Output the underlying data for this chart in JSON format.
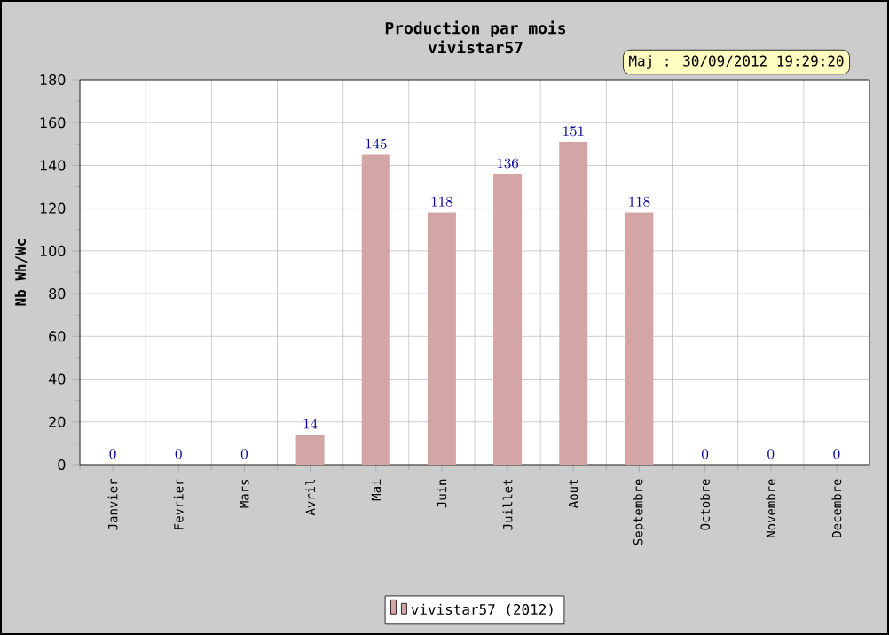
{
  "chart_data": {
    "type": "bar",
    "title": "Production par mois\nvivistar57",
    "ylabel": "Nb Wh/Wc",
    "annotations": [
      "Maj : 30/09/2012 19:29:20"
    ],
    "categories": [
      "Janvier",
      "Fevrier",
      "Mars",
      "Avril",
      "Mai",
      "Juin",
      "Juillet",
      "Aout",
      "Septembre",
      "Octobre",
      "Novembre",
      "Decembre"
    ],
    "series": [
      {
        "name": "vivistar57 (2012)",
        "color": "#d4a5a5",
        "values": [
          0,
          0,
          0,
          14,
          145,
          118,
          136,
          151,
          118,
          0,
          0,
          0
        ]
      }
    ],
    "ylim": [
      0,
      180
    ],
    "yticks": [
      0,
      20,
      40,
      60,
      80,
      100,
      120,
      140,
      160,
      180
    ],
    "grid": true,
    "legend": "bottom",
    "data_labels": true
  }
}
